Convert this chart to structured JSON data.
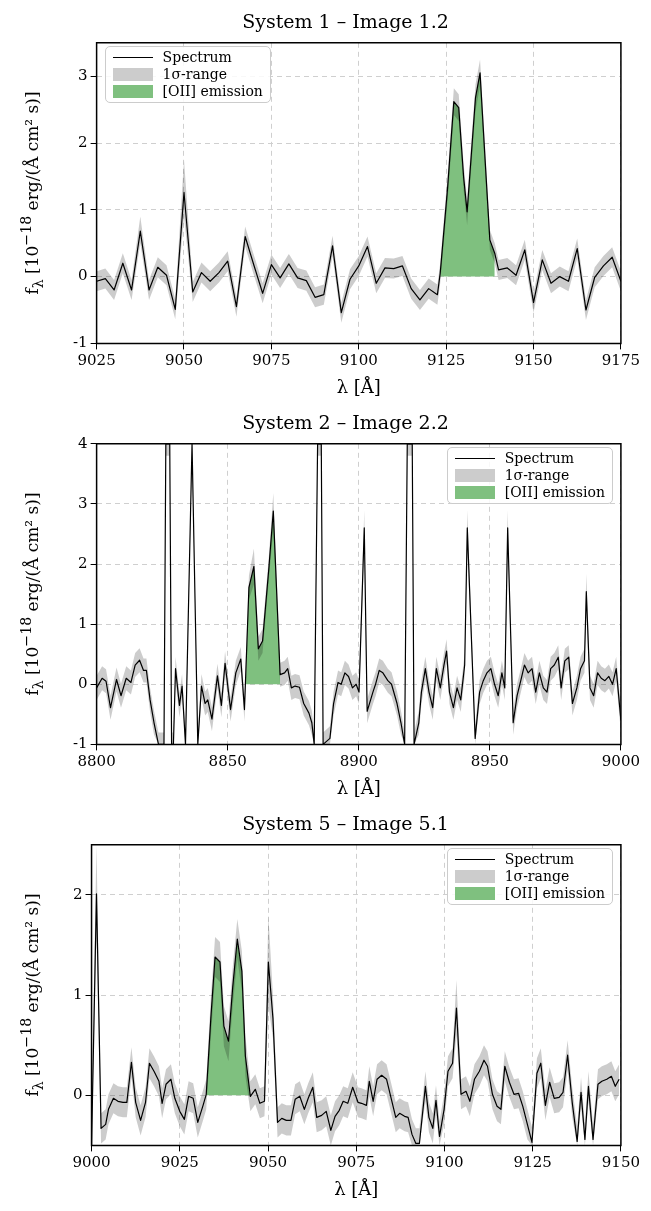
{
  "chart_data": [
    {
      "type": "line",
      "title": "System 1 – Image 1.2",
      "xlabel": "λ [Å]",
      "ylabel": "f$_{λ}$ [10$^{−18}$ erg/(Å cm² s)]",
      "xlim": [
        9025,
        9175
      ],
      "xticks": [
        9025,
        9050,
        9075,
        9100,
        9125,
        9150,
        9175
      ],
      "ylim": [
        -1,
        3.5
      ],
      "yticks": [
        -1,
        0,
        1,
        2,
        3
      ],
      "grid": true,
      "legend": "top left",
      "x": [
        9025,
        9027.5,
        9030,
        9032.5,
        9035,
        9037.5,
        9040,
        9042.5,
        9045,
        9047.5,
        9050,
        9052.5,
        9055,
        9057.5,
        9060,
        9062.5,
        9065,
        9067.5,
        9070,
        9072.5,
        9075,
        9077.5,
        9080,
        9082.5,
        9085,
        9087.5,
        9090,
        9092.5,
        9095,
        9097.5,
        9100,
        9102.5,
        9105,
        9107.5,
        9110,
        9112.5,
        9115,
        9117.5,
        9120,
        9122.5,
        9123.3,
        9125.4,
        9127.2,
        9128.6,
        9130,
        9131,
        9132.3,
        9133.4,
        9134.7,
        9136.1,
        9137.5,
        9138.9,
        9140,
        9142.5,
        9145,
        9147.5,
        9150,
        9152.5,
        9155,
        9157.5,
        9160,
        9162.5,
        9165,
        9167.5,
        9170,
        9172.5,
        9175
      ],
      "series": [
        {
          "name": "Spectrum",
          "type": "line",
          "color": "#000000",
          "values": [
            -0.07,
            -0.03,
            -0.2,
            0.2,
            -0.2,
            0.68,
            -0.2,
            0.14,
            0.02,
            -0.49,
            1.26,
            -0.23,
            0.06,
            -0.07,
            0.06,
            0.23,
            -0.45,
            0.6,
            0.17,
            -0.25,
            0.18,
            -0.02,
            0.19,
            -0.02,
            -0.06,
            -0.31,
            -0.27,
            0.46,
            -0.54,
            -0.04,
            0.16,
            0.45,
            -0.1,
            0.13,
            0.12,
            0.16,
            -0.18,
            -0.35,
            -0.18,
            -0.27,
            0.05,
            1.32,
            2.62,
            2.53,
            1.49,
            0.97,
            1.9,
            2.68,
            3.05,
            1.79,
            0.55,
            0.35,
            0.1,
            0.13,
            0.02,
            0.4,
            -0.39,
            0.25,
            -0.1,
            0,
            -0.07,
            0.42,
            -0.5,
            -0.01,
            0.16,
            0.29,
            -0.07
          ],
          "upper": [
            0.08,
            0.12,
            -0.05,
            0.35,
            -0.05,
            0.9,
            -0.05,
            0.29,
            0.17,
            -0.34,
            1.75,
            -0.08,
            0.21,
            0.08,
            0.21,
            0.38,
            -0.3,
            0.75,
            0.32,
            -0.1,
            0.33,
            0.13,
            0.34,
            0.13,
            0.09,
            -0.16,
            -0.12,
            0.61,
            -0.39,
            0.11,
            0.31,
            0.6,
            0.05,
            0.28,
            0.27,
            0.31,
            -0.03,
            -0.2,
            -0.03,
            -0.12,
            0.2,
            1.52,
            2.82,
            2.73,
            1.69,
            1.17,
            2.1,
            2.88,
            3.25,
            1.99,
            0.7,
            0.5,
            0.25,
            0.28,
            0.17,
            0.55,
            -0.24,
            0.4,
            0.05,
            0.15,
            0.08,
            0.57,
            -0.35,
            0.14,
            0.31,
            0.44,
            0.08
          ],
          "lower": [
            -0.22,
            -0.18,
            -0.35,
            0.05,
            -0.35,
            0.5,
            -0.35,
            -0.01,
            -0.13,
            -0.64,
            0.9,
            -0.38,
            -0.09,
            -0.22,
            -0.09,
            0.08,
            -0.6,
            0.45,
            0.02,
            -0.4,
            0.03,
            -0.17,
            0.04,
            -0.17,
            -0.21,
            -0.46,
            -0.42,
            0.31,
            -0.69,
            -0.19,
            0.01,
            0.3,
            -0.25,
            -0.02,
            -0.03,
            0.01,
            -0.33,
            -0.5,
            -0.33,
            -0.42,
            -0.1,
            1.12,
            2.42,
            2.33,
            1.29,
            0.77,
            1.7,
            2.48,
            2.85,
            1.59,
            0.4,
            0.2,
            -0.05,
            -0.02,
            -0.13,
            0.25,
            -0.54,
            0.1,
            -0.25,
            -0.15,
            -0.22,
            0.27,
            -0.65,
            -0.16,
            0.01,
            0.14,
            -0.22
          ]
        },
        {
          "name": "1σ-range",
          "type": "area",
          "color": "#cccccc",
          "values": [
            null,
            null,
            null,
            null,
            null,
            null,
            null,
            null,
            null,
            null,
            null,
            null,
            null,
            null,
            null,
            null,
            null,
            null,
            null,
            null,
            null,
            null,
            null,
            null,
            null,
            null,
            null,
            null,
            null,
            null,
            null,
            null,
            null,
            null,
            null,
            null,
            null,
            null,
            null,
            null,
            null,
            null,
            null,
            null,
            null,
            null,
            null,
            null,
            null,
            null,
            null,
            null,
            null,
            null,
            null,
            null,
            null,
            null,
            null,
            null,
            null,
            null,
            null,
            null,
            null,
            null,
            null
          ]
        },
        {
          "name": "[OII] emission",
          "type": "area",
          "color": "#7fc07f",
          "x": [
            9123.3,
            9125.4,
            9127.2,
            9128.6,
            9130,
            9131,
            9132.3,
            9133.4,
            9134.7,
            9136.1,
            9137.5,
            9138.9
          ],
          "values": [
            0.05,
            1.32,
            2.62,
            2.53,
            1.49,
            0.97,
            1.9,
            2.68,
            3.05,
            1.79,
            0.55,
            0.35
          ]
        }
      ]
    },
    {
      "type": "line",
      "title": "System 2 – Image 2.2",
      "xlabel": "λ [Å]",
      "ylabel": "f$_{λ}$ [10$^{−18}$ erg/(Å cm² s)]",
      "xlim": [
        8800,
        9000
      ],
      "xticks": [
        8800,
        8850,
        8900,
        8950,
        9000
      ],
      "ylim": [
        -1,
        4
      ],
      "yticks": [
        -1,
        0,
        1,
        2,
        3,
        4
      ],
      "grid": true,
      "legend": "top right",
      "x": [
        8800,
        8802.1,
        8803.6,
        8805.3,
        8807.6,
        8809.3,
        8811.3,
        8813.1,
        8814.7,
        8816.4,
        8817.9,
        8819,
        8820.4,
        8821.9,
        8823.6,
        8825.7,
        8826.4,
        8827.9,
        8828.6,
        8829.3,
        8830.1,
        8831.6,
        8832.6,
        8833.9,
        8836.4,
        8838.6,
        8840,
        8841.4,
        8842.4,
        8844,
        8846.1,
        8847.6,
        8849,
        8851.1,
        8853.1,
        8855,
        8856.4,
        8858.1,
        8860,
        8861.7,
        8863.3,
        8865.7,
        8867.4,
        8870,
        8871.7,
        8872.9,
        8874.3,
        8875.7,
        8877.4,
        8879,
        8881,
        8882.1,
        8883,
        8884.3,
        8885.7,
        8886.4,
        8889,
        8890.4,
        8892.1,
        8893.3,
        8894.7,
        8896.1,
        8897.6,
        8899,
        8900.1,
        8902.1,
        8903.2,
        8905.4,
        8906.4,
        8907.8,
        8909.2,
        8911.1,
        8912.5,
        8914.6,
        8916.1,
        8917.5,
        8918.5,
        8920.4,
        8921.1,
        8922.9,
        8923.9,
        8925.4,
        8926.8,
        8928.2,
        8929.6,
        8931.1,
        8932.5,
        8933.5,
        8934.6,
        8936.1,
        8937.5,
        8938.9,
        8940.4,
        8941.4,
        8944.4,
        8946.1,
        8947.5,
        8948.9,
        8950.4,
        8951.8,
        8953.2,
        8954.6,
        8955.7,
        8956.8,
        8958.9,
        8960.4,
        8961.8,
        8963.2,
        8964.6,
        8966.1,
        8967.5,
        8968.9,
        8970.4,
        8971.8,
        8973.2,
        8974.6,
        8976.1,
        8977.2,
        8978.6,
        8980.1,
        8981.5,
        8983.2,
        8984.6,
        8986.1,
        8986.8,
        8988.2,
        8989.6,
        8991.1,
        8992.5,
        8993.9,
        8995.4,
        8996.8,
        8998.2,
        9000
      ],
      "series": [
        {
          "name": "Spectrum",
          "type": "line",
          "color": "#000000",
          "values": [
            -0.06,
            0.1,
            0.05,
            -0.39,
            0.08,
            -0.19,
            0.1,
            0.03,
            0.32,
            0.4,
            0.23,
            0.23,
            -0.26,
            -0.64,
            -1,
            -1,
            4,
            4,
            -1,
            -1,
            0.26,
            -0.35,
            -0.03,
            -1,
            4,
            -1,
            -0.03,
            -0.32,
            -0.26,
            -0.58,
            0.14,
            -0.35,
            0.35,
            -0.42,
            0.19,
            0.42,
            -0.42,
            1.61,
            1.96,
            0.59,
            0.72,
            1.93,
            2.88,
            0.16,
            0.19,
            0.26,
            -0.06,
            -0.03,
            -0.05,
            -0.32,
            -0.48,
            -0.64,
            -1,
            4,
            4,
            -1,
            -0.9,
            -0.32,
            0.03,
            0,
            0.19,
            0.13,
            -0.06,
            0,
            -0.13,
            2.6,
            -0.45,
            -0.13,
            0,
            0.23,
            0.19,
            0.06,
            0,
            -0.32,
            -0.64,
            -1,
            4,
            4,
            -1,
            -0.64,
            -0.13,
            0.26,
            -0.13,
            -0.39,
            0.26,
            -0.06,
            0.32,
            0.55,
            -0.13,
            -0.39,
            -0.06,
            -0.26,
            0.32,
            2.6,
            -0.9,
            -0.13,
            0.06,
            0.19,
            0.26,
            0,
            -0.19,
            0.19,
            -0.06,
            2.6,
            -0.64,
            -0.19,
            0.06,
            0.32,
            0.19,
            0.26,
            -0.13,
            0.19,
            -0.06,
            -0.13,
            0.26,
            0.32,
            0.45,
            -0.06,
            0.39,
            0.45,
            -0.32,
            -0.06,
            0.26,
            0.39,
            1.54,
            -0.06,
            -0.19,
            0.19,
            0.1,
            0.06,
            0.13,
            0,
            0.26,
            -0.6
          ],
          "upper": [
            0.14,
            0.3,
            0.25,
            -0.19,
            0.28,
            0.01,
            0.3,
            0.23,
            0.52,
            0.6,
            0.43,
            0.43,
            -0.06,
            -0.44,
            -0.8,
            -0.8,
            4,
            4,
            -0.8,
            -0.8,
            0.46,
            -0.15,
            0.17,
            -0.8,
            4,
            -0.8,
            0.17,
            -0.12,
            -0.06,
            -0.38,
            0.34,
            -0.15,
            0.55,
            -0.22,
            0.39,
            0.62,
            -0.22,
            1.81,
            2.26,
            0.79,
            0.92,
            2.13,
            3.18,
            0.36,
            0.39,
            0.46,
            0.14,
            0.17,
            0.15,
            -0.12,
            -0.28,
            -0.44,
            -0.8,
            4,
            4,
            -0.8,
            -0.7,
            -0.12,
            0.23,
            0.2,
            0.39,
            0.33,
            0.14,
            0.2,
            0.07,
            2.9,
            -0.25,
            0.07,
            0.2,
            0.43,
            0.39,
            0.26,
            0.2,
            -0.12,
            -0.44,
            -0.8,
            4,
            4,
            -0.8,
            -0.44,
            0.07,
            0.46,
            0.07,
            -0.19,
            0.46,
            0.14,
            0.52,
            0.75,
            0.07,
            -0.19,
            0.14,
            -0.06,
            0.52,
            2.9,
            -0.7,
            0.07,
            0.26,
            0.39,
            0.46,
            0.2,
            0.01,
            0.39,
            0.14,
            2.9,
            -0.44,
            0.01,
            0.26,
            0.52,
            0.39,
            0.46,
            0.07,
            0.39,
            0.14,
            0.07,
            0.46,
            0.52,
            0.65,
            0.14,
            0.59,
            0.65,
            -0.12,
            0.14,
            0.46,
            0.59,
            1.84,
            0.14,
            0.01,
            0.39,
            0.3,
            0.26,
            0.33,
            0.2,
            0.46,
            -0.4
          ],
          "lower": [
            -0.26,
            -0.1,
            -0.15,
            -0.59,
            -0.12,
            -0.39,
            -0.1,
            -0.17,
            0.12,
            0.2,
            0.03,
            0.03,
            -0.46,
            -0.84,
            -1,
            -1,
            3.8,
            3.8,
            -1,
            -1,
            0.06,
            -0.55,
            -0.23,
            -1,
            3.8,
            -1,
            -0.23,
            -0.52,
            -0.46,
            -0.78,
            -0.06,
            -0.55,
            0.15,
            -0.62,
            -0.01,
            0.22,
            -0.62,
            1.41,
            1.66,
            0.39,
            0.52,
            1.73,
            2.58,
            -0.04,
            -0.01,
            0.06,
            -0.26,
            -0.23,
            -0.25,
            -0.52,
            -0.68,
            -0.84,
            -1,
            3.8,
            3.8,
            -1,
            -1,
            -0.52,
            -0.17,
            -0.2,
            -0.01,
            -0.07,
            -0.26,
            -0.2,
            -0.33,
            2.3,
            -0.65,
            -0.33,
            -0.2,
            0.03,
            -0.01,
            -0.14,
            -0.2,
            -0.52,
            -0.84,
            -1,
            3.8,
            3.8,
            -1,
            -0.84,
            -0.33,
            0.06,
            -0.33,
            -0.59,
            0.06,
            -0.26,
            0.12,
            0.35,
            -0.33,
            -0.59,
            -0.26,
            -0.46,
            0.12,
            2.3,
            -1,
            -0.33,
            -0.14,
            -0.01,
            0.06,
            -0.2,
            -0.39,
            -0.01,
            -0.26,
            2.3,
            -0.84,
            -0.39,
            -0.14,
            0.12,
            -0.01,
            0.06,
            -0.33,
            -0.01,
            -0.26,
            -0.33,
            0.06,
            0.12,
            0.25,
            -0.26,
            0.19,
            0.25,
            -0.52,
            -0.26,
            0.06,
            0.19,
            1.24,
            -0.26,
            -0.39,
            -0.01,
            -0.1,
            -0.14,
            -0.07,
            -0.2,
            0.06,
            -0.8
          ]
        },
        {
          "name": "1σ-range",
          "type": "area",
          "color": "#cccccc",
          "values": [
            null,
            null,
            null,
            null,
            null,
            null,
            null,
            null,
            null,
            null,
            null,
            null,
            null,
            null,
            null,
            null,
            null,
            null,
            null,
            null,
            null,
            null,
            null,
            null,
            null,
            null,
            null,
            null,
            null,
            null,
            null,
            null,
            null,
            null,
            null,
            null,
            null,
            null,
            null,
            null,
            null,
            null,
            null,
            null,
            null,
            null,
            null,
            null,
            null,
            null,
            null,
            null,
            null,
            null,
            null,
            null,
            null,
            null,
            null,
            null,
            null,
            null,
            null,
            null,
            null,
            null,
            null,
            null,
            null,
            null,
            null,
            null,
            null,
            null,
            null,
            null,
            null,
            null,
            null,
            null,
            null,
            null,
            null,
            null,
            null,
            null,
            null,
            null,
            null,
            null,
            null,
            null,
            null,
            null,
            null,
            null,
            null,
            null,
            null,
            null,
            null,
            null,
            null,
            null,
            null,
            null,
            null,
            null,
            null,
            null,
            null,
            null,
            null,
            null,
            null,
            null,
            null,
            null,
            null,
            null,
            null,
            null,
            null,
            null,
            null,
            null,
            null,
            null,
            null,
            null,
            null,
            null,
            null,
            null
          ]
        },
        {
          "name": "[OII] emission",
          "type": "area",
          "color": "#7fc07f",
          "x": [
            8856.9,
            8858.1,
            8860,
            8861.7,
            8863.3,
            8865.7,
            8867.4,
            8870
          ],
          "values": [
            0,
            1.61,
            1.96,
            0.59,
            0.72,
            1.93,
            2.88,
            0.16
          ]
        }
      ]
    },
    {
      "type": "line",
      "title": "System 5 – Image 5.1",
      "xlabel": "λ [Å]",
      "ylabel": "f$_{λ}$ [10$^{−18}$ erg/(Å cm² s)]",
      "xlim": [
        9000,
        9150
      ],
      "xticks": [
        9000,
        9025,
        9050,
        9075,
        9100,
        9125,
        9150
      ],
      "ylim": [
        -0.5,
        2.5
      ],
      "yticks": [
        0,
        1,
        2
      ],
      "grid": true,
      "legend": "top right",
      "x": [
        9000,
        9001.4,
        9002.7,
        9004,
        9004.8,
        9006.2,
        9007.5,
        9008.9,
        9010,
        9011.3,
        9012.5,
        9013.9,
        9015.3,
        9016.4,
        9017.7,
        9019.1,
        9020,
        9021.1,
        9022.5,
        9023.6,
        9025,
        9026.3,
        9027.5,
        9028.8,
        9030.1,
        9031.6,
        9032.5,
        9033.8,
        9035,
        9036.4,
        9037.5,
        9038.8,
        9040,
        9041.3,
        9042.6,
        9043.6,
        9045,
        9046.4,
        9047.7,
        9049,
        9050.1,
        9051.4,
        9052.7,
        9053.9,
        9055.2,
        9056.5,
        9057.7,
        9059,
        9060.3,
        9061.4,
        9062.7,
        9063.8,
        9065.2,
        9066.5,
        9067.8,
        9069,
        9070.2,
        9071.3,
        9072.6,
        9074,
        9075.5,
        9076.5,
        9077.9,
        9078.7,
        9079.8,
        9080.9,
        9082.2,
        9083.6,
        9084.9,
        9086.2,
        9087.3,
        9088.7,
        9089.7,
        9090.8,
        9091.9,
        9092.9,
        9094.6,
        9095.6,
        9096.7,
        9097.6,
        9098.6,
        9099.9,
        9101,
        9102.3,
        9103.4,
        9104.7,
        9106.1,
        9107.2,
        9108.5,
        9109.9,
        9111.2,
        9112.2,
        9113.6,
        9114.9,
        9116,
        9117.1,
        9118.4,
        9119.7,
        9121,
        9122.2,
        9123.5,
        9124.8,
        9126.2,
        9127.3,
        9128.6,
        9129.8,
        9131.1,
        9132.5,
        9133.6,
        9134.9,
        9136.2,
        9137.6,
        9138.7,
        9139.8,
        9140.8,
        9142.1,
        9143.5,
        9144.6,
        9146,
        9147.3,
        9148.4,
        9149.5
      ],
      "series": [
        {
          "name": "Spectrum",
          "type": "line",
          "color": "#000000",
          "values": [
            -0.5,
            2.01,
            -0.33,
            -0.29,
            -0.14,
            -0.03,
            -0.06,
            -0.07,
            -0.07,
            0.33,
            -0.07,
            -0.25,
            -0.07,
            0.32,
            0.24,
            0.14,
            -0.08,
            0.11,
            0.16,
            -0.03,
            -0.16,
            -0.24,
            -0.01,
            -0.03,
            -0.27,
            -0.1,
            0.01,
            0.77,
            1.38,
            1.33,
            0.69,
            0.54,
            1.08,
            1.56,
            1.24,
            0.39,
            -0.01,
            0.06,
            -0.08,
            -0.06,
            1.33,
            0.77,
            -0.27,
            -0.23,
            -0.25,
            -0.25,
            -0.04,
            -0.01,
            -0.14,
            -0.03,
            0.08,
            -0.22,
            -0.2,
            -0.16,
            -0.35,
            -0.21,
            -0.15,
            -0.06,
            -0.08,
            0.08,
            -0.07,
            -0.08,
            -0.1,
            0.14,
            -0.06,
            0.16,
            0.2,
            0.16,
            -0.03,
            -0.22,
            -0.18,
            -0.21,
            -0.22,
            -0.39,
            -0.48,
            -0.48,
            0.09,
            -0.22,
            -0.33,
            -0.05,
            -0.41,
            -0.14,
            0.24,
            0.32,
            0.87,
            0.01,
            0.04,
            -0.06,
            0.16,
            0.24,
            0.35,
            0.29,
            0.01,
            -0.11,
            -0.14,
            0.29,
            0.13,
            0.01,
            0.02,
            -0.11,
            -0.29,
            -0.47,
            0.22,
            0.32,
            -0.1,
            0.13,
            -0.03,
            -0.02,
            0.03,
            0.4,
            -0.07,
            -0.46,
            0.03,
            -0.44,
            0.09,
            -0.44,
            0.11,
            0.14,
            0.16,
            0.19,
            0.09,
            0.16
          ],
          "upper": [
            -0.2,
            2.5,
            -0.18,
            -0.14,
            0.01,
            0.12,
            0.09,
            0.08,
            0.08,
            0.48,
            0.08,
            -0.1,
            0.08,
            0.47,
            0.39,
            0.29,
            0.07,
            0.26,
            0.31,
            0.12,
            -0.01,
            -0.09,
            0.14,
            0.12,
            -0.12,
            0.05,
            0.16,
            0.97,
            1.58,
            1.53,
            0.89,
            0.74,
            1.28,
            1.76,
            1.44,
            0.59,
            0.14,
            0.21,
            0.07,
            0.09,
            1.8,
            1.0,
            -0.12,
            -0.08,
            -0.1,
            -0.1,
            0.11,
            0.14,
            0.01,
            0.12,
            0.23,
            -0.07,
            -0.05,
            -0.01,
            -0.2,
            -0.06,
            0,
            0.09,
            0.07,
            0.23,
            0.08,
            0.07,
            0.05,
            0.29,
            0.09,
            0.31,
            0.35,
            0.31,
            0.12,
            -0.07,
            -0.03,
            -0.06,
            -0.07,
            -0.24,
            -0.33,
            -0.33,
            0.24,
            -0.07,
            -0.18,
            0.1,
            -0.26,
            0.01,
            0.39,
            0.47,
            1.15,
            0.16,
            0.19,
            0.09,
            0.31,
            0.39,
            0.5,
            0.44,
            0.16,
            0.04,
            0.01,
            0.44,
            0.28,
            0.16,
            0.17,
            0.04,
            -0.14,
            -0.32,
            0.37,
            0.47,
            0.05,
            0.28,
            0.12,
            0.13,
            0.18,
            0.55,
            0.08,
            -0.31,
            0.18,
            -0.29,
            0.24,
            -0.29,
            0.26,
            0.29,
            0.31,
            0.34,
            0.24,
            0.31
          ],
          "lower": [
            -0.5,
            1.6,
            -0.48,
            -0.44,
            -0.29,
            -0.18,
            -0.21,
            -0.22,
            -0.22,
            0.18,
            -0.22,
            -0.4,
            -0.22,
            0.17,
            0.09,
            -0.01,
            -0.23,
            -0.04,
            0.01,
            -0.18,
            -0.31,
            -0.39,
            -0.16,
            -0.18,
            -0.42,
            -0.25,
            -0.14,
            0.57,
            1.18,
            1.13,
            0.49,
            0.34,
            0.88,
            1.36,
            1.04,
            0.19,
            -0.16,
            -0.09,
            -0.23,
            -0.21,
            0.9,
            0.57,
            -0.42,
            -0.38,
            -0.4,
            -0.4,
            -0.19,
            -0.16,
            -0.29,
            -0.18,
            -0.07,
            -0.37,
            -0.35,
            -0.31,
            -0.5,
            -0.36,
            -0.3,
            -0.21,
            -0.23,
            -0.07,
            -0.22,
            -0.23,
            -0.25,
            -0.01,
            -0.21,
            0.01,
            0.05,
            0.01,
            -0.18,
            -0.37,
            -0.33,
            -0.36,
            -0.37,
            -0.5,
            -0.5,
            -0.5,
            -0.06,
            -0.37,
            -0.48,
            -0.2,
            -0.5,
            -0.29,
            0.09,
            0.17,
            0.6,
            -0.14,
            -0.11,
            -0.21,
            0.01,
            0.09,
            0.2,
            0.14,
            -0.14,
            -0.26,
            -0.29,
            0.14,
            -0.02,
            -0.14,
            -0.13,
            -0.26,
            -0.44,
            -0.5,
            0.07,
            0.17,
            -0.25,
            -0.02,
            -0.18,
            -0.17,
            -0.12,
            0.25,
            -0.22,
            -0.5,
            -0.12,
            -0.5,
            -0.06,
            -0.5,
            -0.04,
            -0.01,
            0.01,
            0.04,
            -0.06,
            0.01
          ]
        },
        {
          "name": "1σ-range",
          "type": "area",
          "color": "#cccccc",
          "values": [
            null,
            null,
            null,
            null,
            null,
            null,
            null,
            null,
            null,
            null,
            null,
            null,
            null,
            null,
            null,
            null,
            null,
            null,
            null,
            null,
            null,
            null,
            null,
            null,
            null,
            null,
            null,
            null,
            null,
            null,
            null,
            null,
            null,
            null,
            null,
            null,
            null,
            null,
            null,
            null,
            null,
            null,
            null,
            null,
            null,
            null,
            null,
            null,
            null,
            null,
            null,
            null,
            null,
            null,
            null,
            null,
            null,
            null,
            null,
            null,
            null,
            null,
            null,
            null,
            null,
            null,
            null,
            null,
            null,
            null,
            null,
            null,
            null,
            null,
            null,
            null,
            null,
            null,
            null,
            null,
            null,
            null,
            null,
            null,
            null,
            null,
            null,
            null,
            null,
            null,
            null,
            null,
            null,
            null,
            null,
            null,
            null,
            null,
            null,
            null,
            null,
            null,
            null,
            null,
            null,
            null,
            null,
            null,
            null,
            null,
            null,
            null,
            null,
            null,
            null,
            null,
            null,
            null,
            null,
            null,
            null,
            null
          ]
        },
        {
          "name": "[OII] emission",
          "type": "area",
          "color": "#7fc07f",
          "x": [
            9032.5,
            9033.8,
            9035,
            9036.4,
            9037.5,
            9038.8,
            9040,
            9041.3,
            9042.6,
            9043.6,
            9045
          ],
          "values": [
            0.01,
            0.77,
            1.38,
            1.33,
            0.69,
            0.54,
            1.08,
            1.56,
            1.24,
            0.39,
            -0.01
          ]
        }
      ]
    }
  ]
}
